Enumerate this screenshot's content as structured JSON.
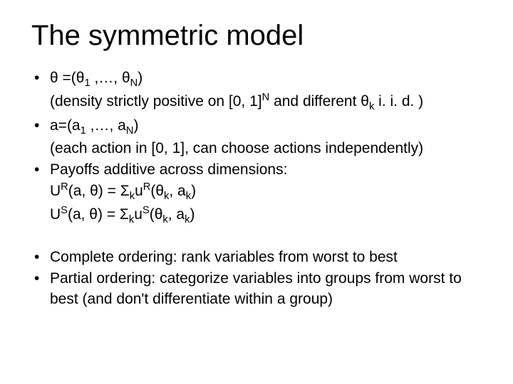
{
  "title": "The symmetric model",
  "block1": {
    "b1": "θ =(θ",
    "b1_sub1": "1",
    "b1_mid": " ,…, θ",
    "b1_subN": "N",
    "b1_end": ")",
    "b1_line2a": "(density strictly positive on [0, 1]",
    "b1_line2_supN": "N",
    "b1_line2b": " and different θ",
    "b1_line2_subk": "k",
    "b1_line2c": "  i. i. d. )",
    "b2": "a=(a",
    "b2_sub1": "1",
    "b2_mid": " ,…, a",
    "b2_subN": "N",
    "b2_end": ")",
    "b2_line2": "(each action in [0, 1], can choose actions independently)",
    "b3": "Payoffs additive across dimensions:",
    "b3_l2a": "U",
    "b3_l2_supR": "R",
    "b3_l2b": "(a, θ) = Σ",
    "b3_l2_subk": "k",
    "b3_l2c": "u",
    "b3_l2_supR2": "R",
    "b3_l2d": "(θ",
    "b3_l2_subk2": "k",
    "b3_l2e": ", a",
    "b3_l2_subk3": "k",
    "b3_l2f": ")",
    "b3_l3a": "U",
    "b3_l3_supS": "S",
    "b3_l3b": "(a, θ) = Σ",
    "b3_l3_subk": "k",
    "b3_l3c": "u",
    "b3_l3_supS2": "S",
    "b3_l3d": "(θ",
    "b3_l3_subk2": "k",
    "b3_l3e": ", a",
    "b3_l3_subk3": "k",
    "b3_l3f": ")"
  },
  "block2": {
    "b4": "Complete ordering: rank variables from worst to best",
    "b5": "Partial ordering: categorize variables into groups from worst to best (and don't differentiate within a group)"
  },
  "style": {
    "background_color": "#ffffff",
    "text_color": "#000000",
    "title_fontsize": 40,
    "body_fontsize": 21,
    "font_family": "Arial"
  }
}
